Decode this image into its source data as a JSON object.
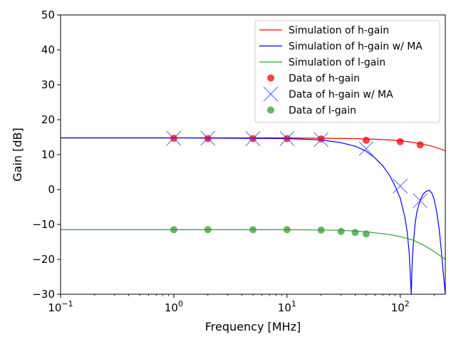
{
  "chart_data": {
    "type": "line",
    "xscale": "log",
    "xlim": [
      0.1,
      250
    ],
    "ylim": [
      -30,
      50
    ],
    "xlabel": "Frequency [MHz]",
    "ylabel": "Gain [dB]",
    "x_ticks": [
      {
        "value": 0.1,
        "base": "10",
        "exp": "−1"
      },
      {
        "value": 1,
        "base": "10",
        "exp": "0"
      },
      {
        "value": 10,
        "base": "10",
        "exp": "1"
      },
      {
        "value": 100,
        "base": "10",
        "exp": "2"
      }
    ],
    "y_ticks": [
      {
        "value": -30,
        "label": "−30"
      },
      {
        "value": -20,
        "label": "−20"
      },
      {
        "value": -10,
        "label": "−10"
      },
      {
        "value": 0,
        "label": "0"
      },
      {
        "value": 10,
        "label": "10"
      },
      {
        "value": 20,
        "label": "20"
      },
      {
        "value": 30,
        "label": "30"
      },
      {
        "value": 40,
        "label": "40"
      },
      {
        "value": 50,
        "label": "50"
      }
    ],
    "legend_position": "top-right",
    "series": [
      {
        "name": "Simulation of h-gain",
        "kind": "line",
        "color": "#ff0000",
        "x": [
          0.1,
          1,
          10,
          20,
          40,
          60,
          80,
          100,
          130,
          160,
          200,
          250
        ],
        "y": [
          14.8,
          14.8,
          14.8,
          14.7,
          14.6,
          14.4,
          14.2,
          14.0,
          13.5,
          13.0,
          12.2,
          11.1
        ]
      },
      {
        "name": "Simulation of h-gain w/ MA",
        "kind": "line",
        "color": "#0000ff",
        "x": [
          0.1,
          1,
          10,
          20,
          30,
          40,
          50,
          60,
          70,
          80,
          90,
          100,
          110,
          115,
          120,
          123,
          125,
          127,
          130,
          135,
          140,
          150,
          160,
          170,
          180,
          190,
          200,
          210,
          220,
          230,
          240,
          250
        ],
        "y": [
          14.8,
          14.8,
          14.6,
          14.2,
          13.4,
          12.4,
          11.0,
          9.0,
          6.8,
          4.2,
          1.0,
          -2.5,
          -8.0,
          -12.0,
          -18.0,
          -25.0,
          -30.0,
          -22.0,
          -16.0,
          -10.0,
          -6.5,
          -3.0,
          -1.2,
          -0.5,
          -0.2,
          -1.0,
          -3.0,
          -6.5,
          -11.0,
          -17.0,
          -24.0,
          -30.0
        ]
      },
      {
        "name": "Simulation of l-gain",
        "kind": "line",
        "color": "#2ca02c",
        "x": [
          0.1,
          1,
          10,
          20,
          30,
          40,
          50,
          60,
          80,
          100,
          130,
          160,
          200,
          250
        ],
        "y": [
          -11.5,
          -11.5,
          -11.5,
          -11.6,
          -11.7,
          -11.9,
          -12.1,
          -12.4,
          -12.9,
          -13.5,
          -14.5,
          -15.9,
          -17.8,
          -20.0
        ]
      },
      {
        "name": "Data of h-gain",
        "kind": "dot",
        "color": "#ff0000",
        "x": [
          1,
          2,
          5,
          10,
          20,
          50,
          100,
          150
        ],
        "y": [
          14.7,
          14.6,
          14.6,
          14.6,
          14.5,
          14.1,
          13.7,
          12.8
        ]
      },
      {
        "name": "Data of h-gain w/ MA",
        "kind": "x",
        "color": "#3333ff",
        "x": [
          1,
          2,
          5,
          10,
          20,
          50,
          100,
          150
        ],
        "y": [
          14.7,
          14.7,
          14.6,
          14.6,
          14.3,
          11.7,
          1.0,
          -3.2
        ]
      },
      {
        "name": "Data of l-gain",
        "kind": "dot",
        "color": "#2ca02c",
        "x": [
          1,
          2,
          5,
          10,
          20,
          30,
          40,
          50
        ],
        "y": [
          -11.5,
          -11.5,
          -11.5,
          -11.5,
          -11.6,
          -12.0,
          -12.3,
          -12.7
        ]
      }
    ]
  }
}
